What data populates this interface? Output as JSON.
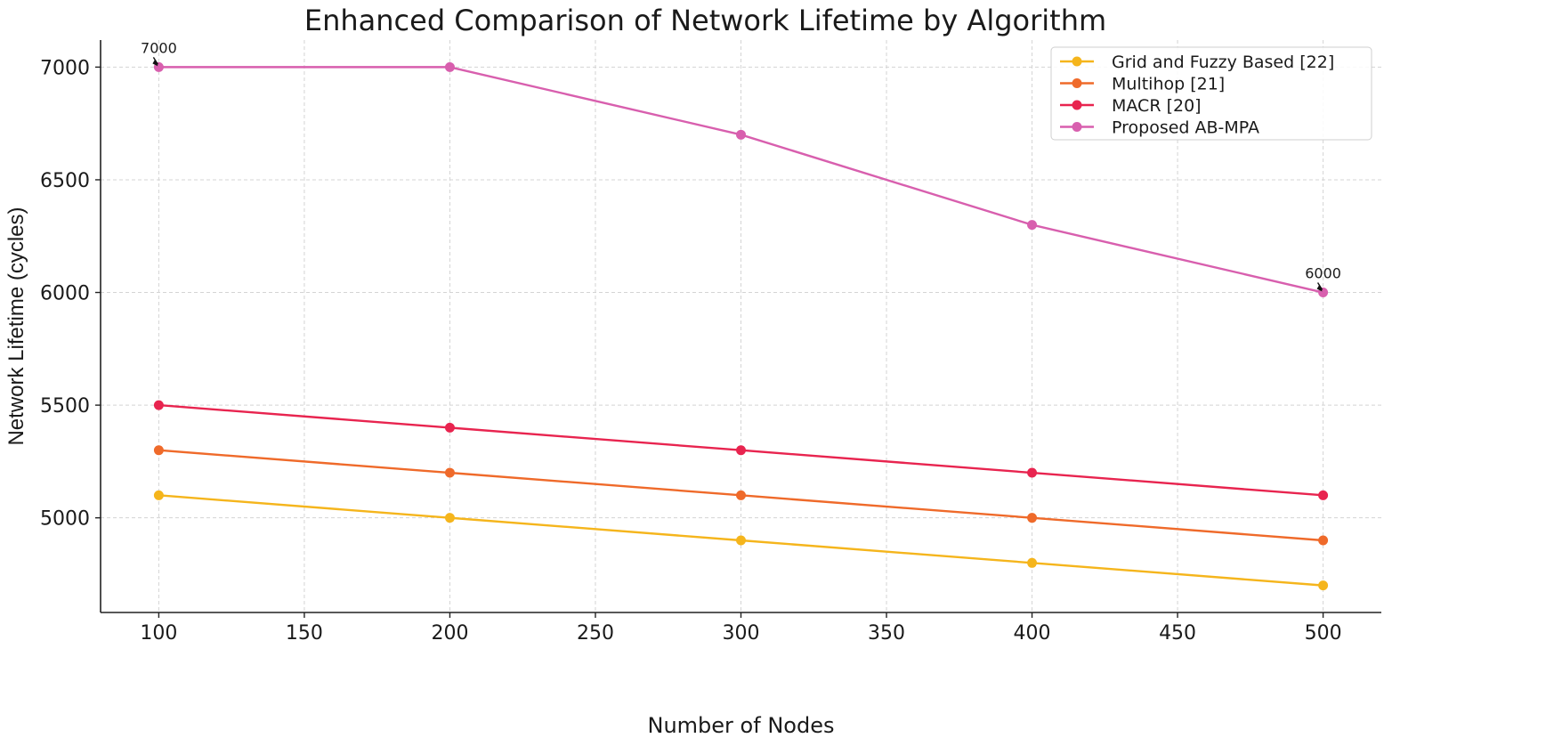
{
  "chart_data": {
    "type": "line",
    "title": "Enhanced Comparison of Network Lifetime by Algorithm",
    "xlabel": "Number of Nodes",
    "ylabel": "Network Lifetime (cycles)",
    "x": [
      100,
      200,
      300,
      400,
      500
    ],
    "xlim": [
      80,
      520
    ],
    "ylim": [
      4580,
      7120
    ],
    "xticks": [
      100,
      150,
      200,
      250,
      300,
      350,
      400,
      450,
      500
    ],
    "xtick_labels": [
      "100",
      "150",
      "200",
      "250",
      "300",
      "350",
      "400",
      "450",
      "500"
    ],
    "yticks": [
      5000,
      5500,
      6000,
      6500,
      7000
    ],
    "ytick_labels": [
      "5000",
      "5500",
      "6000",
      "6500",
      "7000"
    ],
    "grid": true,
    "legend_position": "top-right",
    "series": [
      {
        "name": "Grid and Fuzzy Based [22]",
        "values": [
          5100,
          5000,
          4900,
          4800,
          4700
        ],
        "color": "#f5b51c"
      },
      {
        "name": "Multihop [21]",
        "values": [
          5300,
          5200,
          5100,
          5000,
          4900
        ],
        "color": "#ef6a2a"
      },
      {
        "name": "MACR [20]",
        "values": [
          5500,
          5400,
          5300,
          5200,
          5100
        ],
        "color": "#e8244f"
      },
      {
        "name": "Proposed AB-MPA",
        "values": [
          7000,
          7000,
          6700,
          6300,
          6000
        ],
        "color": "#d85fae"
      }
    ],
    "annotations": [
      {
        "text": "7000",
        "x": 100,
        "y": 7000,
        "series": "Proposed AB-MPA"
      },
      {
        "text": "6000",
        "x": 500,
        "y": 6000,
        "series": "Proposed AB-MPA"
      }
    ]
  }
}
